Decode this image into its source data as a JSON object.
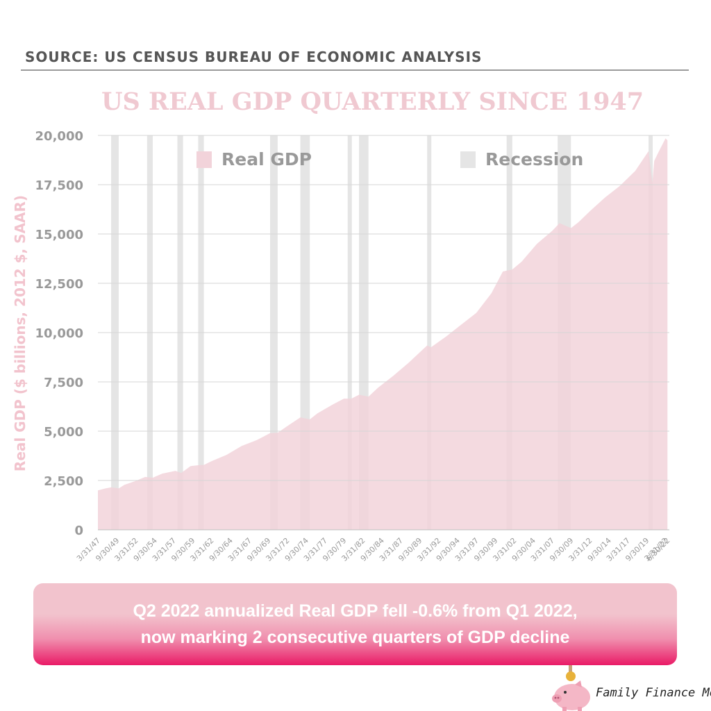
{
  "header": {
    "source": "SOURCE: US CENSUS BUREAU OF ECONOMIC ANALYSIS"
  },
  "banner": {
    "line1": "Q2 2022 annualized Real GDP fell -0.6% from Q1 2022,",
    "line2": "now marking 2 consecutive quarters of GDP decline"
  },
  "brand": {
    "name": "Family Finance Mom"
  },
  "colors": {
    "area": "#f2d3da",
    "recession": "#e5e5e5",
    "gridline": "#d6d6d6",
    "axis_text": "#999999",
    "title": "#f0c9d1",
    "banner_top": "#f2c3cd",
    "banner_bottom": "#e91a66"
  },
  "chart_data": {
    "type": "area",
    "title": "US REAL GDP QUARTERLY SINCE 1947",
    "ylabel": "Real GDP ($ billions, 2012 $, SAAR)",
    "xlabel": "",
    "ylim": [
      0,
      20000
    ],
    "xlim": [
      1947.0,
      2022.5
    ],
    "yticks": [
      0,
      2500,
      5000,
      7500,
      10000,
      12500,
      15000,
      17500,
      20000
    ],
    "ytick_labels": [
      "0",
      "2,500",
      "5,000",
      "7,500",
      "10,000",
      "12,500",
      "15,000",
      "17,500",
      "20,000"
    ],
    "xticks": [
      {
        "label": "3/31/47",
        "x": 1947.0
      },
      {
        "label": "9/30/49",
        "x": 1949.5
      },
      {
        "label": "3/31/52",
        "x": 1952.0
      },
      {
        "label": "9/30/54",
        "x": 1954.5
      },
      {
        "label": "3/31/57",
        "x": 1957.0
      },
      {
        "label": "9/30/59",
        "x": 1959.5
      },
      {
        "label": "3/31/62",
        "x": 1962.0
      },
      {
        "label": "9/30/64",
        "x": 1964.5
      },
      {
        "label": "3/31/67",
        "x": 1967.0
      },
      {
        "label": "9/30/69",
        "x": 1969.5
      },
      {
        "label": "3/31/72",
        "x": 1972.0
      },
      {
        "label": "9/30/74",
        "x": 1974.5
      },
      {
        "label": "3/31/77",
        "x": 1977.0
      },
      {
        "label": "9/30/79",
        "x": 1979.5
      },
      {
        "label": "3/31/82",
        "x": 1982.0
      },
      {
        "label": "9/30/84",
        "x": 1984.5
      },
      {
        "label": "3/31/87",
        "x": 1987.0
      },
      {
        "label": "9/30/89",
        "x": 1989.5
      },
      {
        "label": "3/31/92",
        "x": 1992.0
      },
      {
        "label": "9/30/94",
        "x": 1994.5
      },
      {
        "label": "3/31/97",
        "x": 1997.0
      },
      {
        "label": "9/30/99",
        "x": 1999.5
      },
      {
        "label": "3/31/02",
        "x": 2002.0
      },
      {
        "label": "9/30/04",
        "x": 2004.5
      },
      {
        "label": "3/31/07",
        "x": 2007.0
      },
      {
        "label": "9/30/09",
        "x": 2009.5
      },
      {
        "label": "3/31/12",
        "x": 2012.0
      },
      {
        "label": "9/30/14",
        "x": 2014.5
      },
      {
        "label": "3/31/17",
        "x": 2017.0
      },
      {
        "label": "9/30/19",
        "x": 2019.5
      },
      {
        "label": "3/31/22",
        "x": 2022.0
      },
      {
        "label": "6/30/22",
        "x": 2022.25
      }
    ],
    "series": [
      {
        "name": "Real GDP",
        "x": [
          1947.0,
          1948.0,
          1948.75,
          1949.75,
          1950.5,
          1952.0,
          1953.25,
          1954.25,
          1955.5,
          1957.25,
          1958.0,
          1959.25,
          1960.5,
          1961.0,
          1962.0,
          1964.0,
          1966.0,
          1968.0,
          1969.75,
          1970.75,
          1972.0,
          1973.75,
          1975.0,
          1976.0,
          1978.0,
          1979.5,
          1980.5,
          1981.5,
          1982.75,
          1984.0,
          1986.0,
          1988.0,
          1990.5,
          1991.0,
          1993.0,
          1995.0,
          1997.0,
          1999.0,
          2000.5,
          2001.75,
          2003.0,
          2005.0,
          2007.0,
          2008.0,
          2009.5,
          2010.5,
          2012.0,
          2014.0,
          2016.0,
          2018.0,
          2019.75,
          2020.25,
          2020.5,
          2021.0,
          2022.0,
          2022.25
        ],
        "values": [
          2000,
          2100,
          2150,
          2100,
          2280,
          2480,
          2680,
          2640,
          2850,
          2990,
          2880,
          3230,
          3280,
          3290,
          3480,
          3800,
          4250,
          4550,
          4900,
          4920,
          5250,
          5700,
          5600,
          5900,
          6350,
          6650,
          6650,
          6850,
          6750,
          7200,
          7800,
          8450,
          9350,
          9250,
          9800,
          10400,
          11000,
          12000,
          13100,
          13200,
          13600,
          14500,
          15150,
          15550,
          15300,
          15600,
          16150,
          16850,
          17450,
          18200,
          19200,
          17600,
          18700,
          19100,
          19850,
          19750
        ]
      }
    ],
    "recessions": [
      [
        1948.75,
        1949.75
      ],
      [
        1953.5,
        1954.25
      ],
      [
        1957.5,
        1958.25
      ],
      [
        1960.25,
        1961.0
      ],
      [
        1969.75,
        1970.75
      ],
      [
        1973.75,
        1975.0
      ],
      [
        1980.0,
        1980.5
      ],
      [
        1981.5,
        1982.75
      ],
      [
        1990.5,
        1991.0
      ],
      [
        2001.0,
        2001.75
      ],
      [
        2007.75,
        2009.5
      ],
      [
        2019.75,
        2020.25
      ]
    ],
    "legend": {
      "placement": "top",
      "entries": [
        "Real GDP",
        "Recession"
      ]
    },
    "grid": true
  }
}
